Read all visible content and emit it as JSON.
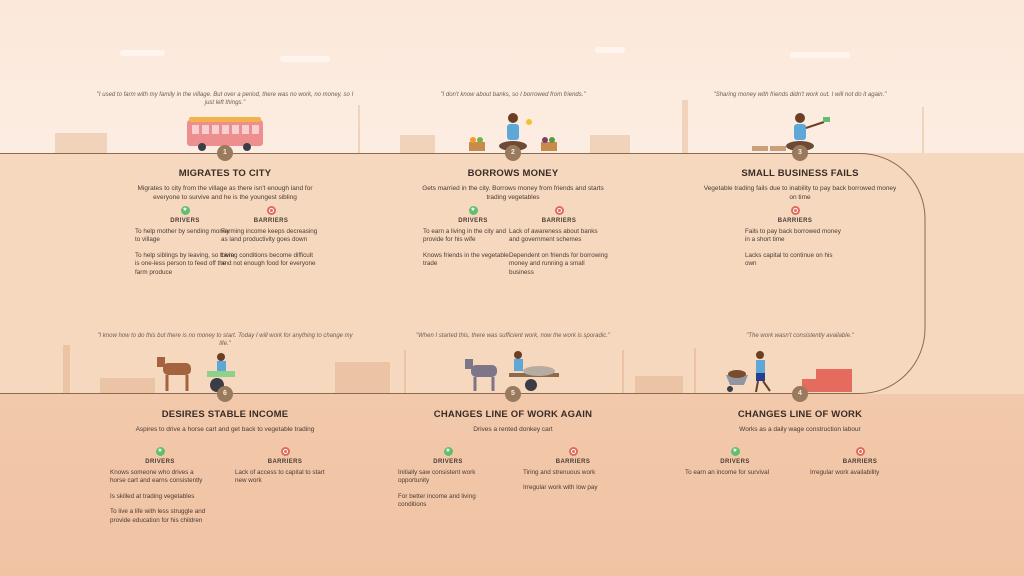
{
  "colors": {
    "sky": "#fbe8da",
    "upper_band": "#f5d8be",
    "lower_band": "#f2c9ab",
    "path_line": "#8b6a4f",
    "step_badge": "#9a7a5c",
    "driver_icon": "#5fbf6e",
    "barrier_icon": "#e26a5a"
  },
  "labels": {
    "drivers": "DRIVERS",
    "barriers": "BARRIERS"
  },
  "stages": [
    {
      "step": "1",
      "row": "top",
      "illustration": "bus-icon",
      "quote": "\"I used to farm with my family in the village. But over a period, there was no work, no money, so I just left things.\"",
      "title": "MIGRATES TO CITY",
      "description": "Migrates to city from the village as there isn't enough land for everyone to survive and he is the youngest sibling",
      "drivers": [
        "To help mother by sending money to village",
        "To help siblings by leaving, so there is one-less person to feed off the farm produce"
      ],
      "barriers": [
        "Farming income keeps decreasing as land productivity goes down",
        "Living conditions become difficult and not enough food for everyone"
      ]
    },
    {
      "step": "2",
      "row": "top",
      "illustration": "vegetable-seller-icon",
      "quote": "\"I don't know about banks, so I borrowed from friends.\"",
      "title": "BORROWS MONEY",
      "description": "Gets married in the city. Borrows money from friends and starts trading vegetables",
      "drivers": [
        "To earn a living in the city and provide for his wife",
        "Knows friends in the vegetable trade"
      ],
      "barriers": [
        "Lack of awareness about banks and government schemes",
        "Dependent on friends for borrowing money and running a small business"
      ]
    },
    {
      "step": "3",
      "row": "top",
      "illustration": "person-with-money-icon",
      "quote": "\"Sharing money with friends didn't work out. I will not do it again.\"",
      "title": "SMALL BUSINESS FAILS",
      "description": "Vegetable trading fails due to inability to pay back borrowed money on time",
      "drivers": [],
      "barriers": [
        "Fails to pay back borrowed money in a short time",
        "Lacks capital to continue on his own"
      ]
    },
    {
      "step": "6",
      "row": "bottom",
      "illustration": "horse-cart-icon",
      "quote": "\"I know how to do this but there is no money to start. Today I will work for anything to change my life.\"",
      "title": "DESIRES STABLE INCOME",
      "description": "Aspires to drive a horse cart and get back to vegetable trading",
      "drivers": [
        "Knows someone who drives a horse cart and earns consistently",
        "Is skilled at trading vegetables",
        "To live a life with less struggle and provide education for his children"
      ],
      "barriers": [
        "Lack of access to capital to start new work"
      ]
    },
    {
      "step": "5",
      "row": "bottom",
      "illustration": "donkey-cart-icon",
      "quote": "\"When I started this, there was sufficient work, now the work is sporadic.\"",
      "title": "CHANGES LINE OF WORK AGAIN",
      "description": "Drives a rented donkey cart",
      "drivers": [
        "Initially saw consistent work opportunity",
        "For better income and living conditions"
      ],
      "barriers": [
        "Tiring and strenuous work",
        "Irregular work with low pay"
      ]
    },
    {
      "step": "4",
      "row": "bottom",
      "illustration": "wheelbarrow-bricks-icon",
      "quote": "\"The work wasn't consistently available.\"",
      "title": "CHANGES LINE OF WORK",
      "description": "Works as a daily wage construction labour",
      "drivers": [
        "To earn an income for survival"
      ],
      "barriers": [
        "Irregular work availability"
      ]
    }
  ]
}
